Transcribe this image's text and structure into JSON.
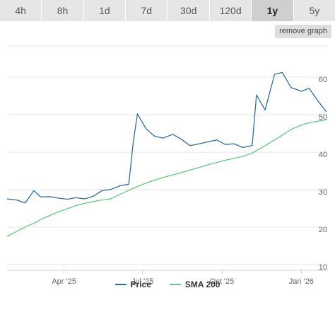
{
  "tabs": [
    {
      "label": "4h",
      "active": false
    },
    {
      "label": "8h",
      "active": false
    },
    {
      "label": "1d",
      "active": false
    },
    {
      "label": "7d",
      "active": false
    },
    {
      "label": "30d",
      "active": false
    },
    {
      "label": "120d",
      "active": false
    },
    {
      "label": "1y",
      "active": true
    },
    {
      "label": "5y",
      "active": false
    }
  ],
  "remove_graph_label": "remove graph",
  "chart_data": {
    "type": "line",
    "x_ticks": [
      "Apr '25",
      "Jul '25",
      "Oct '25",
      "Jan '26"
    ],
    "y_ticks": [
      10,
      20,
      30,
      40,
      50,
      60
    ],
    "ylim": [
      10,
      62
    ],
    "grid": "horizontal",
    "legend_position": "bottom",
    "x_dates": [
      "2025-01-25",
      "2025-02-05",
      "2025-02-15",
      "2025-02-25",
      "2025-03-05",
      "2025-03-15",
      "2025-03-25",
      "2025-04-05",
      "2025-04-15",
      "2025-04-25",
      "2025-05-05",
      "2025-05-15",
      "2025-05-25",
      "2025-06-05",
      "2025-06-15",
      "2025-06-20",
      "2025-06-25",
      "2025-07-05",
      "2025-07-15",
      "2025-07-25",
      "2025-08-05",
      "2025-08-15",
      "2025-08-25",
      "2025-09-05",
      "2025-09-15",
      "2025-09-25",
      "2025-10-05",
      "2025-10-15",
      "2025-10-25",
      "2025-11-05",
      "2025-11-10",
      "2025-11-20",
      "2025-12-01",
      "2025-12-10",
      "2025-12-20",
      "2026-01-01",
      "2026-01-10",
      "2026-01-20",
      "2026-01-30"
    ],
    "series": [
      {
        "name": "Price",
        "color": "#2e6da4",
        "values": [
          28.3,
          28.0,
          27.2,
          30.5,
          28.8,
          28.9,
          28.5,
          28.2,
          28.6,
          28.3,
          29.0,
          30.5,
          30.8,
          31.8,
          32.2,
          43.0,
          51.0,
          47.0,
          45.0,
          44.5,
          45.5,
          44.2,
          42.5,
          43.0,
          43.5,
          44.0,
          42.8,
          43.0,
          42.0,
          42.5,
          56.0,
          52.0,
          61.5,
          62.0,
          58.0,
          57.0,
          57.8,
          54.5,
          51.5
        ]
      },
      {
        "name": "SMA 200",
        "color": "#5ccc7f",
        "values": [
          18.3,
          19.6,
          20.8,
          21.8,
          22.8,
          23.8,
          24.8,
          25.7,
          26.5,
          27.1,
          27.6,
          28.0,
          28.3,
          29.5,
          30.6,
          31.1,
          31.6,
          32.5,
          33.3,
          34.0,
          34.7,
          35.3,
          36.0,
          36.7,
          37.4,
          38.0,
          38.6,
          39.1,
          39.6,
          40.5,
          41.2,
          42.5,
          44.0,
          45.3,
          46.8,
          48.0,
          48.6,
          49.0,
          49.4
        ]
      }
    ]
  }
}
